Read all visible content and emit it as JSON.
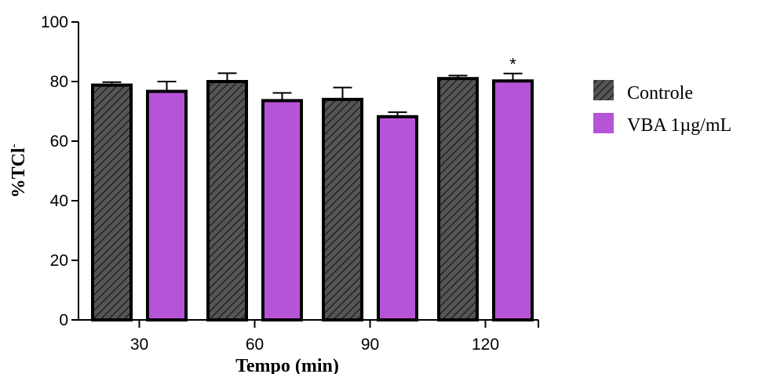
{
  "chart_data": {
    "type": "bar",
    "xlabel": "Tempo (min)",
    "ylabel": "%TCl",
    "ylabel_superscript": "-",
    "ylim": [
      0,
      100
    ],
    "yticks": [
      0,
      20,
      40,
      60,
      80,
      100
    ],
    "categories": [
      "30",
      "60",
      "90",
      "120"
    ],
    "series": [
      {
        "name": "Controle",
        "color": "#444444",
        "pattern": "diagonal-hatch",
        "values": [
          78.8,
          80.0,
          74.0,
          81.0
        ],
        "errors": [
          1.0,
          2.8,
          4.0,
          1.0
        ]
      },
      {
        "name": "VBA 1µg/mL",
        "color": "#b654d8",
        "pattern": "solid",
        "values": [
          76.7,
          73.6,
          68.2,
          80.2
        ],
        "errors": [
          3.3,
          2.6,
          1.5,
          2.5
        ]
      }
    ],
    "annotations": [
      {
        "text": "*",
        "category": "120",
        "series": "VBA 1µg/mL"
      }
    ],
    "legend_position": "right",
    "grid": false
  }
}
